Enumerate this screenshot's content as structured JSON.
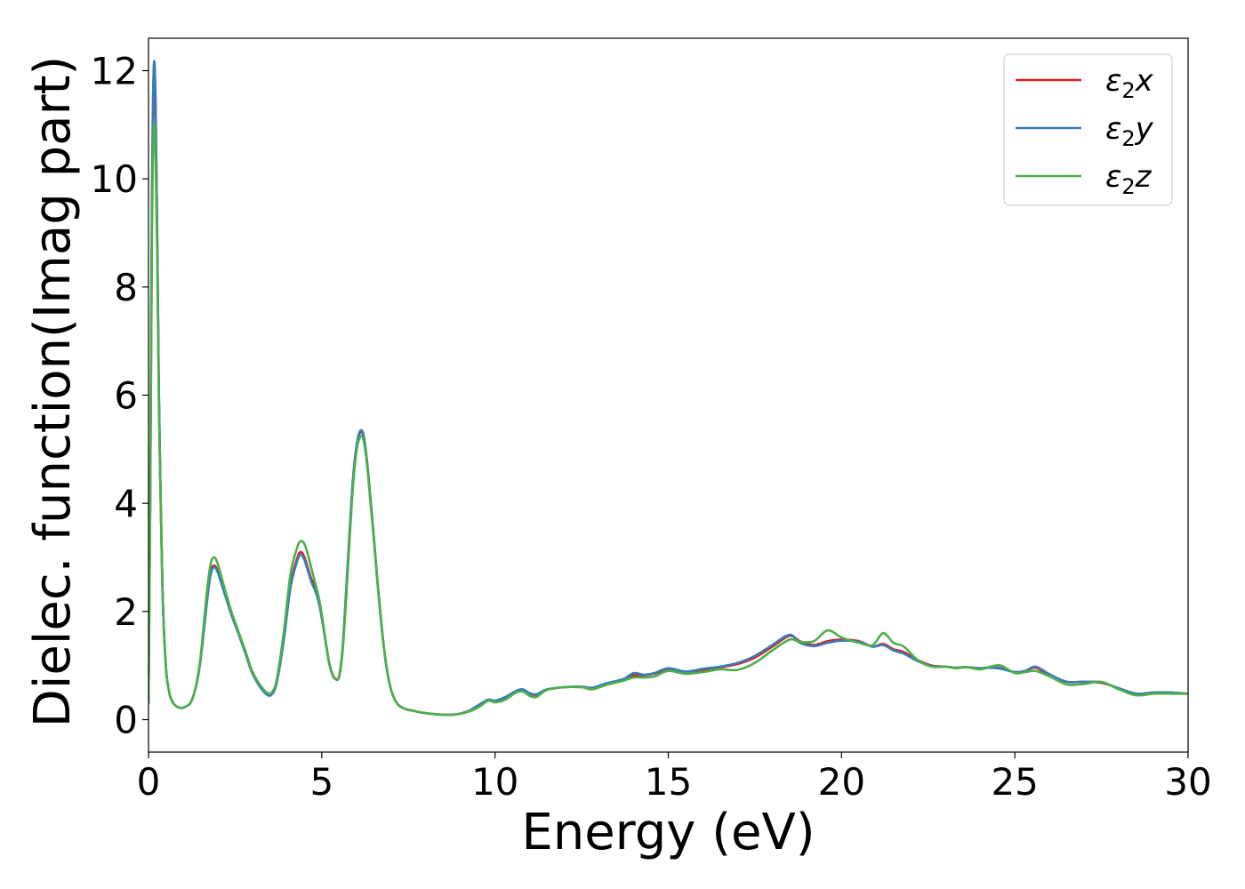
{
  "chart_data": {
    "type": "line",
    "title": "",
    "xlabel": "Energy (eV)",
    "ylabel": "Dielec. function(Imag part)",
    "xlim": [
      0,
      30
    ],
    "ylim": [
      -0.6,
      12.6
    ],
    "xticks": [
      0,
      5,
      10,
      15,
      20,
      25,
      30
    ],
    "xtick_labels": [
      "0",
      "5",
      "10",
      "15",
      "20",
      "25",
      "30"
    ],
    "yticks": [
      0,
      2,
      4,
      6,
      8,
      10,
      12
    ],
    "ytick_labels": [
      "0",
      "2",
      "4",
      "6",
      "8",
      "10",
      "12"
    ],
    "grid": false,
    "legend_position": "top-right",
    "series": [
      {
        "name": "ε₂x",
        "legend_main": "ε",
        "legend_sub": "2",
        "legend_suffix": "x",
        "color": "#e41a1c",
        "x": [
          0,
          0.05,
          0.1,
          0.15,
          0.2,
          0.25,
          0.3,
          0.4,
          0.5,
          0.6,
          0.7,
          0.8,
          0.9,
          1.0,
          1.1,
          1.2,
          1.3,
          1.4,
          1.5,
          1.6,
          1.7,
          1.8,
          1.9,
          2.0,
          2.1,
          2.2,
          2.3,
          2.4,
          2.5,
          2.6,
          2.7,
          2.8,
          2.9,
          3.0,
          3.2,
          3.4,
          3.55,
          3.7,
          3.9,
          4.1,
          4.3,
          4.4,
          4.5,
          4.6,
          4.7,
          4.8,
          4.9,
          5.0,
          5.1,
          5.2,
          5.3,
          5.4,
          5.5,
          5.6,
          5.7,
          5.8,
          5.9,
          6.0,
          6.1,
          6.2,
          6.3,
          6.4,
          6.5,
          6.6,
          6.7,
          6.8,
          6.9,
          7.0,
          7.1,
          7.2,
          7.3,
          7.4,
          7.5,
          7.6,
          7.8,
          8.0,
          8.3,
          8.6,
          8.9,
          9.2,
          9.5,
          9.8,
          10.0,
          10.3,
          10.6,
          10.8,
          11.0,
          11.2,
          11.5,
          12.0,
          12.5,
          12.8,
          13.2,
          13.7,
          14.0,
          14.3,
          14.6,
          15.0,
          15.5,
          16.0,
          16.5,
          17.0,
          17.5,
          18.0,
          18.5,
          18.8,
          19.2,
          19.6,
          20.0,
          20.5,
          20.9,
          21.2,
          21.5,
          21.8,
          22.2,
          22.6,
          23.0,
          23.3,
          23.6,
          24.0,
          24.3,
          24.6,
          25.0,
          25.3,
          25.6,
          26.0,
          26.5,
          27.0,
          27.5,
          28.0,
          28.5,
          29.0,
          29.5,
          30.0
        ],
        "values": [
          0.3,
          4.2,
          9.5,
          11.9,
          11.5,
          9.0,
          6.0,
          2.5,
          1.0,
          0.5,
          0.32,
          0.25,
          0.22,
          0.22,
          0.25,
          0.3,
          0.45,
          0.7,
          1.1,
          1.7,
          2.3,
          2.75,
          2.85,
          2.75,
          2.55,
          2.35,
          2.15,
          1.95,
          1.78,
          1.6,
          1.42,
          1.25,
          1.05,
          0.88,
          0.65,
          0.5,
          0.48,
          0.7,
          1.5,
          2.5,
          3.0,
          3.1,
          3.0,
          2.8,
          2.6,
          2.45,
          2.25,
          1.9,
          1.5,
          1.1,
          0.85,
          0.75,
          0.8,
          1.3,
          2.3,
          3.4,
          4.4,
          5.0,
          5.3,
          5.25,
          4.8,
          4.1,
          3.4,
          2.6,
          1.9,
          1.3,
          0.85,
          0.55,
          0.38,
          0.28,
          0.23,
          0.2,
          0.18,
          0.17,
          0.14,
          0.12,
          0.1,
          0.09,
          0.1,
          0.15,
          0.25,
          0.36,
          0.34,
          0.4,
          0.52,
          0.55,
          0.48,
          0.46,
          0.55,
          0.6,
          0.6,
          0.58,
          0.66,
          0.74,
          0.82,
          0.82,
          0.85,
          0.93,
          0.88,
          0.92,
          0.97,
          1.03,
          1.15,
          1.35,
          1.55,
          1.45,
          1.38,
          1.45,
          1.48,
          1.45,
          1.35,
          1.4,
          1.3,
          1.25,
          1.1,
          1.0,
          0.98,
          0.96,
          0.97,
          0.95,
          0.97,
          0.95,
          0.88,
          0.9,
          0.96,
          0.82,
          0.7,
          0.7,
          0.68,
          0.58,
          0.48,
          0.5,
          0.5,
          0.48
        ],
        "values_note": "",
        "dash": ""
      },
      {
        "name": "ε₂y",
        "legend_main": "ε",
        "legend_sub": "2",
        "legend_suffix": "y",
        "color": "#377eb8",
        "x": [
          0,
          0.05,
          0.1,
          0.15,
          0.2,
          0.25,
          0.3,
          0.4,
          0.5,
          0.6,
          0.7,
          0.8,
          0.9,
          1.0,
          1.1,
          1.2,
          1.3,
          1.4,
          1.5,
          1.6,
          1.7,
          1.8,
          1.9,
          2.0,
          2.1,
          2.2,
          2.3,
          2.4,
          2.5,
          2.6,
          2.7,
          2.8,
          2.9,
          3.0,
          3.2,
          3.4,
          3.55,
          3.7,
          3.9,
          4.1,
          4.3,
          4.4,
          4.5,
          4.6,
          4.7,
          4.8,
          4.9,
          5.0,
          5.1,
          5.2,
          5.3,
          5.4,
          5.5,
          5.6,
          5.7,
          5.8,
          5.9,
          6.0,
          6.1,
          6.2,
          6.3,
          6.4,
          6.5,
          6.6,
          6.7,
          6.8,
          6.9,
          7.0,
          7.1,
          7.2,
          7.3,
          7.4,
          7.5,
          7.6,
          7.8,
          8.0,
          8.3,
          8.6,
          8.9,
          9.2,
          9.5,
          9.8,
          10.0,
          10.3,
          10.6,
          10.8,
          11.0,
          11.2,
          11.5,
          12.0,
          12.5,
          12.8,
          13.2,
          13.7,
          14.0,
          14.3,
          14.6,
          15.0,
          15.5,
          16.0,
          16.5,
          17.0,
          17.5,
          18.0,
          18.5,
          18.8,
          19.2,
          19.6,
          20.0,
          20.5,
          20.9,
          21.2,
          21.5,
          21.8,
          22.2,
          22.6,
          23.0,
          23.3,
          23.6,
          24.0,
          24.3,
          24.6,
          25.0,
          25.3,
          25.6,
          26.0,
          26.5,
          27.0,
          27.5,
          28.0,
          28.5,
          29.0,
          29.5,
          30.0
        ],
        "values": [
          0.3,
          4.3,
          9.8,
          12.05,
          11.6,
          9.1,
          6.1,
          2.5,
          1.0,
          0.5,
          0.32,
          0.25,
          0.22,
          0.22,
          0.25,
          0.3,
          0.45,
          0.7,
          1.1,
          1.65,
          2.25,
          2.7,
          2.82,
          2.72,
          2.52,
          2.32,
          2.12,
          1.92,
          1.75,
          1.58,
          1.4,
          1.22,
          1.02,
          0.85,
          0.62,
          0.47,
          0.46,
          0.68,
          1.45,
          2.45,
          2.95,
          3.05,
          2.95,
          2.75,
          2.55,
          2.4,
          2.2,
          1.88,
          1.48,
          1.08,
          0.84,
          0.75,
          0.8,
          1.32,
          2.35,
          3.45,
          4.45,
          5.05,
          5.33,
          5.28,
          4.82,
          4.12,
          3.4,
          2.6,
          1.9,
          1.3,
          0.85,
          0.55,
          0.38,
          0.28,
          0.23,
          0.2,
          0.18,
          0.17,
          0.14,
          0.12,
          0.1,
          0.09,
          0.1,
          0.15,
          0.26,
          0.37,
          0.35,
          0.42,
          0.53,
          0.56,
          0.49,
          0.47,
          0.56,
          0.6,
          0.61,
          0.59,
          0.67,
          0.75,
          0.86,
          0.83,
          0.86,
          0.95,
          0.89,
          0.94,
          0.98,
          1.05,
          1.18,
          1.38,
          1.57,
          1.42,
          1.36,
          1.42,
          1.46,
          1.44,
          1.35,
          1.38,
          1.28,
          1.22,
          1.08,
          0.99,
          0.98,
          0.96,
          0.97,
          0.95,
          0.96,
          0.94,
          0.88,
          0.9,
          0.98,
          0.84,
          0.7,
          0.7,
          0.69,
          0.58,
          0.48,
          0.5,
          0.5,
          0.48
        ],
        "values_note": "",
        "dash": ""
      },
      {
        "name": "ε₂z",
        "legend_main": "ε",
        "legend_sub": "2",
        "legend_suffix": "z",
        "color": "#4daf4a",
        "x": [
          0,
          0.05,
          0.1,
          0.15,
          0.2,
          0.25,
          0.3,
          0.4,
          0.5,
          0.6,
          0.7,
          0.8,
          0.9,
          1.0,
          1.1,
          1.2,
          1.3,
          1.4,
          1.5,
          1.6,
          1.7,
          1.8,
          1.9,
          2.0,
          2.1,
          2.2,
          2.3,
          2.4,
          2.5,
          2.6,
          2.7,
          2.8,
          2.9,
          3.0,
          3.2,
          3.4,
          3.55,
          3.7,
          3.9,
          4.1,
          4.3,
          4.4,
          4.5,
          4.6,
          4.7,
          4.8,
          4.9,
          5.0,
          5.1,
          5.2,
          5.3,
          5.4,
          5.5,
          5.6,
          5.7,
          5.8,
          5.9,
          6.0,
          6.1,
          6.2,
          6.3,
          6.4,
          6.5,
          6.6,
          6.7,
          6.8,
          6.9,
          7.0,
          7.1,
          7.2,
          7.3,
          7.4,
          7.5,
          7.6,
          7.8,
          8.0,
          8.3,
          8.6,
          8.9,
          9.2,
          9.5,
          9.8,
          10.0,
          10.3,
          10.6,
          10.8,
          11.0,
          11.2,
          11.5,
          12.0,
          12.5,
          12.8,
          13.2,
          13.7,
          14.0,
          14.3,
          14.6,
          15.0,
          15.5,
          16.0,
          16.5,
          17.0,
          17.5,
          18.0,
          18.5,
          18.8,
          19.2,
          19.6,
          20.0,
          20.5,
          20.9,
          21.2,
          21.5,
          21.8,
          22.2,
          22.6,
          23.0,
          23.3,
          23.6,
          24.0,
          24.3,
          24.6,
          25.0,
          25.3,
          25.6,
          26.0,
          26.5,
          27.0,
          27.5,
          28.0,
          28.5,
          29.0,
          29.5,
          30.0
        ],
        "values": [
          0.3,
          4.0,
          9.0,
          10.9,
          10.6,
          8.6,
          5.8,
          2.5,
          1.0,
          0.5,
          0.32,
          0.25,
          0.22,
          0.22,
          0.25,
          0.3,
          0.45,
          0.72,
          1.15,
          1.8,
          2.45,
          2.9,
          3.0,
          2.88,
          2.65,
          2.42,
          2.2,
          1.98,
          1.8,
          1.62,
          1.44,
          1.26,
          1.06,
          0.88,
          0.66,
          0.51,
          0.5,
          0.74,
          1.6,
          2.7,
          3.2,
          3.3,
          3.25,
          3.05,
          2.8,
          2.55,
          2.3,
          1.95,
          1.5,
          1.1,
          0.86,
          0.76,
          0.8,
          1.25,
          2.2,
          3.3,
          4.3,
          4.95,
          5.22,
          5.18,
          4.75,
          4.05,
          3.35,
          2.58,
          1.88,
          1.3,
          0.85,
          0.55,
          0.38,
          0.28,
          0.23,
          0.2,
          0.18,
          0.17,
          0.14,
          0.12,
          0.1,
          0.09,
          0.1,
          0.14,
          0.22,
          0.35,
          0.32,
          0.37,
          0.5,
          0.52,
          0.44,
          0.42,
          0.55,
          0.6,
          0.6,
          0.56,
          0.64,
          0.72,
          0.78,
          0.78,
          0.8,
          0.9,
          0.85,
          0.88,
          0.93,
          0.92,
          1.05,
          1.28,
          1.48,
          1.44,
          1.45,
          1.65,
          1.52,
          1.42,
          1.38,
          1.6,
          1.42,
          1.35,
          1.1,
          0.98,
          0.98,
          0.95,
          0.97,
          0.93,
          0.98,
          1.0,
          0.86,
          0.88,
          0.9,
          0.8,
          0.65,
          0.66,
          0.7,
          0.56,
          0.45,
          0.48,
          0.48,
          0.48
        ],
        "values_note": "",
        "dash": ""
      }
    ]
  }
}
